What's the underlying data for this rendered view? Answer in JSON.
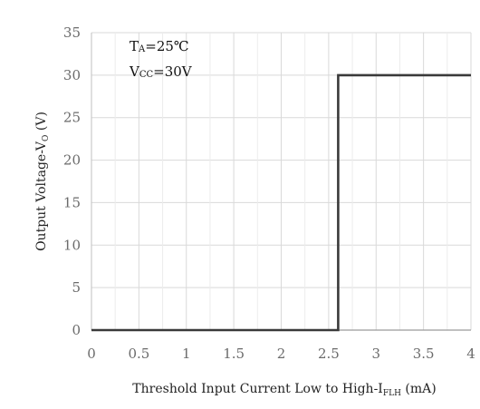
{
  "chart_data": {
    "type": "line",
    "xlabel": {
      "main": "Threshold Input Current Low to High-I",
      "sub": "FLH",
      "unit": "(mA)"
    },
    "ylabel": {
      "main": "Output Voltage-V",
      "sub": "O",
      "unit": "(V)"
    },
    "xlim": [
      0,
      4
    ],
    "ylim": [
      0,
      35
    ],
    "x_ticks": [
      "0",
      "0.5",
      "1",
      "1.5",
      "2",
      "2.5",
      "3",
      "3.5",
      "4"
    ],
    "y_ticks": [
      "0",
      "5",
      "10",
      "15",
      "20",
      "25",
      "30",
      "35"
    ],
    "grid": true,
    "series": [
      {
        "color": "#3a3a3a",
        "points": [
          [
            0,
            0
          ],
          [
            2.6,
            0
          ],
          [
            2.6,
            30
          ],
          [
            4,
            30
          ]
        ]
      }
    ],
    "annotations": [
      {
        "main": "T",
        "sub": "A",
        "rest": "=25℃"
      },
      {
        "main": "V",
        "sub": "CC",
        "rest": "=30V"
      }
    ]
  }
}
